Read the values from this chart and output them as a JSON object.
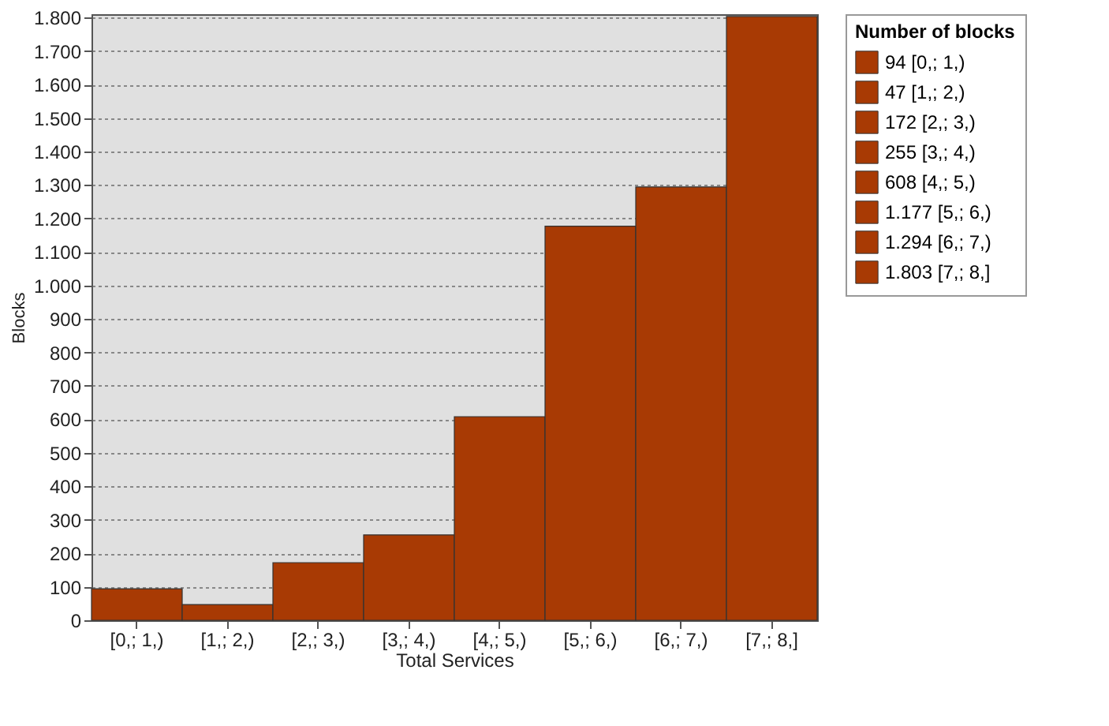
{
  "chart_data": {
    "type": "bar",
    "xlabel": "Total Services",
    "ylabel": "Blocks",
    "legend_title": "Number of blocks",
    "legend": "top right",
    "grid": "y",
    "categories": [
      "[0,; 1,)",
      "[1,; 2,)",
      "[2,; 3,)",
      "[3,; 4,)",
      "[4,; 5,)",
      "[5,; 6,)",
      "[6,; 7,)",
      "[7,; 8,]"
    ],
    "ylim": [
      0,
      1810
    ],
    "yticks": [
      0,
      100,
      200,
      300,
      400,
      500,
      600,
      700,
      800,
      900,
      {
        "value": 1000,
        "label": "1.000"
      },
      {
        "value": 1100,
        "label": "1.100"
      },
      {
        "value": 1200,
        "label": "1.200"
      },
      {
        "value": 1300,
        "label": "1.300"
      },
      {
        "value": 1400,
        "label": "1.400"
      },
      {
        "value": 1500,
        "label": "1.500"
      },
      {
        "value": 1600,
        "label": "1.600"
      },
      {
        "value": 1700,
        "label": "1.700"
      },
      {
        "value": 1800,
        "label": "1.800"
      }
    ],
    "series": [
      {
        "name": "94 [0,; 1,)",
        "color": "#a83a04",
        "values": [
          94,
          null,
          null,
          null,
          null,
          null,
          null,
          null
        ]
      },
      {
        "name": "47 [1,; 2,)",
        "color": "#a83a04",
        "values": [
          null,
          47,
          null,
          null,
          null,
          null,
          null,
          null
        ]
      },
      {
        "name": "172 [2,; 3,)",
        "color": "#a83a04",
        "values": [
          null,
          null,
          172,
          null,
          null,
          null,
          null,
          null
        ]
      },
      {
        "name": "255 [3,; 4,)",
        "color": "#a83a04",
        "values": [
          null,
          null,
          null,
          255,
          null,
          null,
          null,
          null
        ]
      },
      {
        "name": "608 [4,; 5,)",
        "color": "#a83a04",
        "values": [
          null,
          null,
          null,
          null,
          608,
          null,
          null,
          null
        ]
      },
      {
        "name": "1.177 [5,; 6,)",
        "color": "#a83a04",
        "values": [
          null,
          null,
          null,
          null,
          null,
          1177,
          null,
          null
        ]
      },
      {
        "name": "1.294 [6,; 7,)",
        "color": "#a83a04",
        "values": [
          null,
          null,
          null,
          null,
          null,
          null,
          1294,
          null
        ]
      },
      {
        "name": "1.803 [7,; 8,]",
        "color": "#a83a04",
        "values": [
          null,
          null,
          null,
          null,
          null,
          null,
          null,
          1803
        ]
      }
    ]
  }
}
